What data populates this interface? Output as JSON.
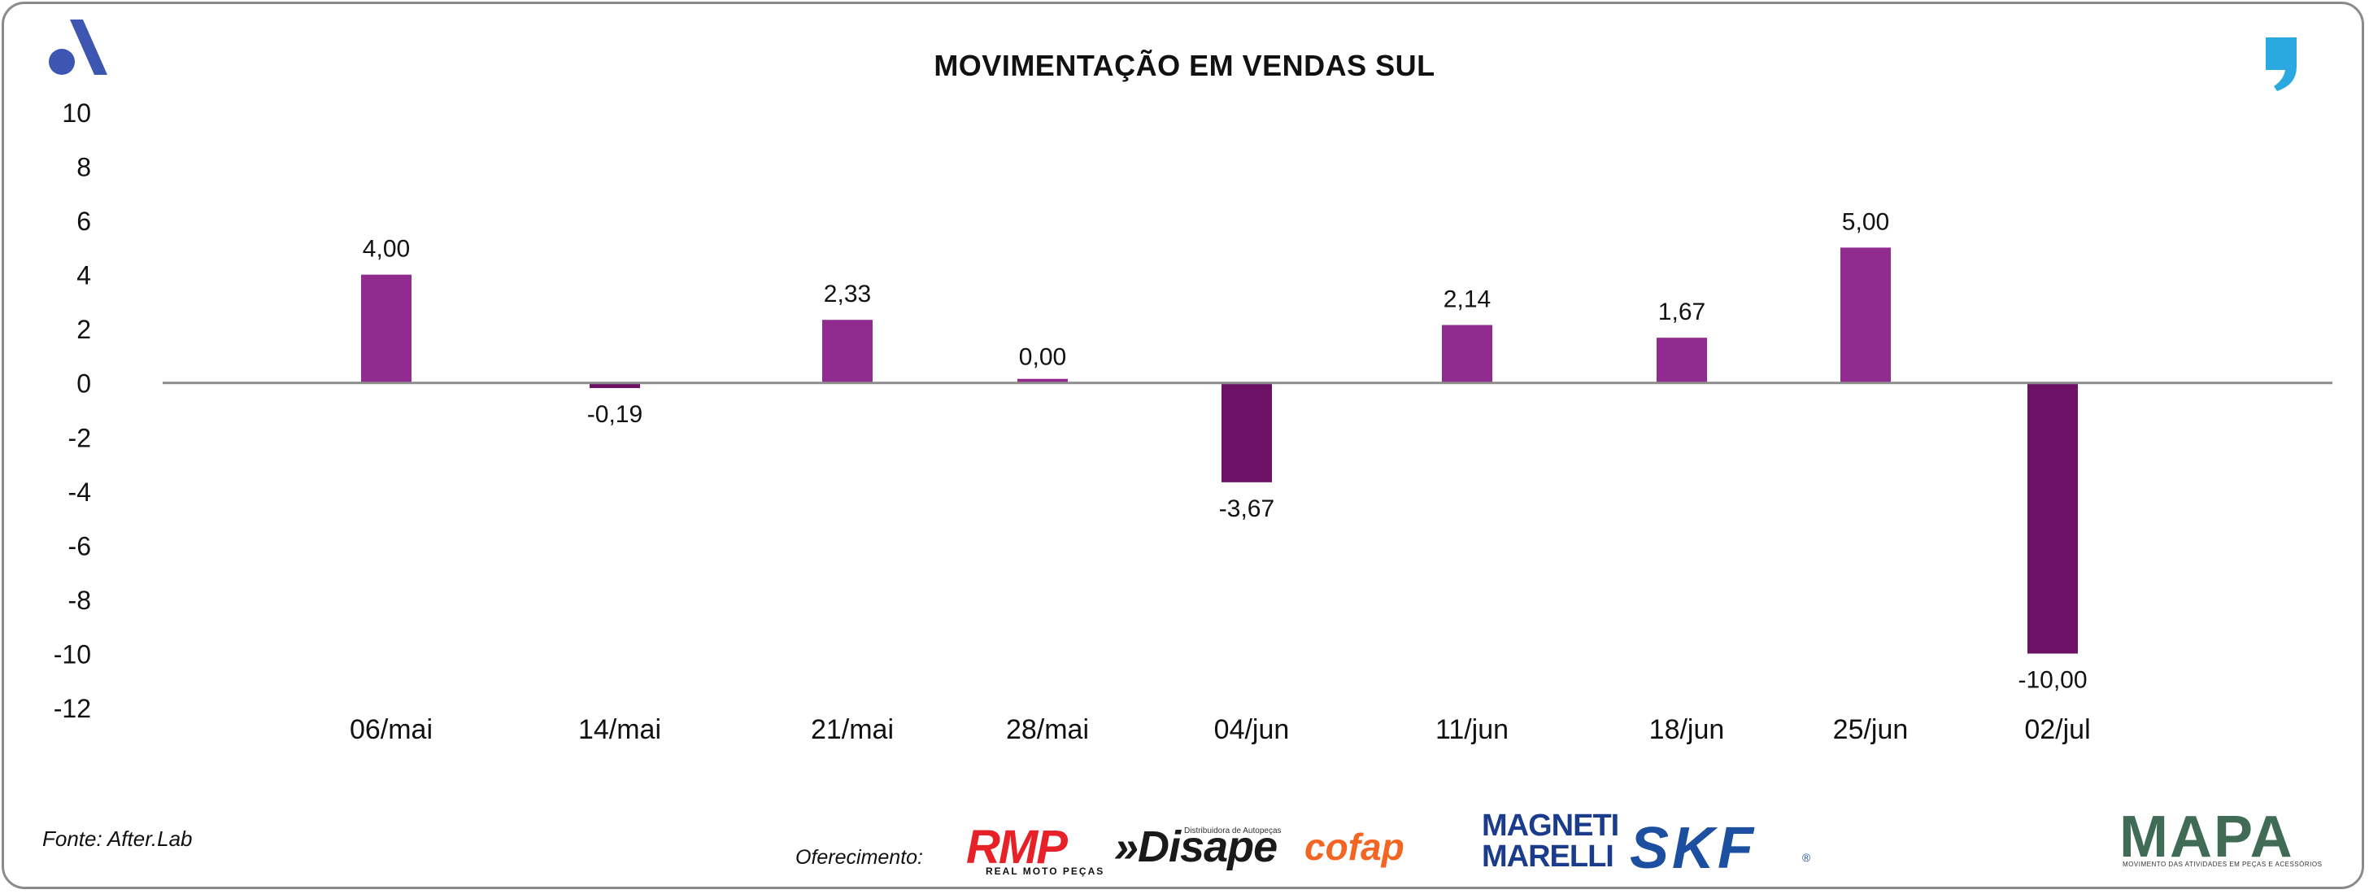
{
  "title": "MOVIMENTAÇÃO EM VENDAS SUL",
  "source": "Fonte: After.Lab",
  "sponsors": {
    "label": "Oferecimento:",
    "rmp": "RMP",
    "rmp_sub": "REAL MOTO PEÇAS",
    "disape": "»Disape",
    "disape_sub": "Distribuidora de Autopeças",
    "cofap": "cofap",
    "magneti_line1": "MAGNETI",
    "magneti_line2": "MARELLI",
    "skf": "SKF",
    "skf_mark": "®",
    "mapa": "MAPA",
    "mapa_sub": "MOVIMENTO DAS ATIVIDADES EM PEÇAS E ACESSÓRIOS"
  },
  "colors": {
    "positive": "#922b8f",
    "negative": "#6d1166",
    "zero_line": "#8c8c8c",
    "brand_a": "#3d56b2",
    "brand_quote": "#2aa9e0"
  },
  "icons": [
    "a-logo-icon",
    "quote-logo-icon"
  ],
  "chart_data": {
    "type": "bar",
    "title": "MOVIMENTAÇÃO EM VENDAS SUL",
    "categories": [
      "06/mai",
      "14/mai",
      "21/mai",
      "28/mai",
      "04/jun",
      "11/jun",
      "18/jun",
      "25/jun",
      "02/jul"
    ],
    "values": [
      4.0,
      -0.19,
      2.33,
      0.0,
      -3.67,
      2.14,
      1.67,
      5.0,
      -10.0
    ],
    "data_labels": [
      "4,00",
      "-0,19",
      "2,33",
      "0,00",
      "-3,67",
      "2,14",
      "1,67",
      "5,00",
      "-10,00"
    ],
    "y_ticks": [
      10,
      8,
      6,
      4,
      2,
      0,
      -2,
      -4,
      -6,
      -8,
      -10,
      -12
    ],
    "ylim": [
      -12,
      10
    ],
    "grid": false,
    "legend": "none",
    "xlabel": "",
    "ylabel": ""
  }
}
